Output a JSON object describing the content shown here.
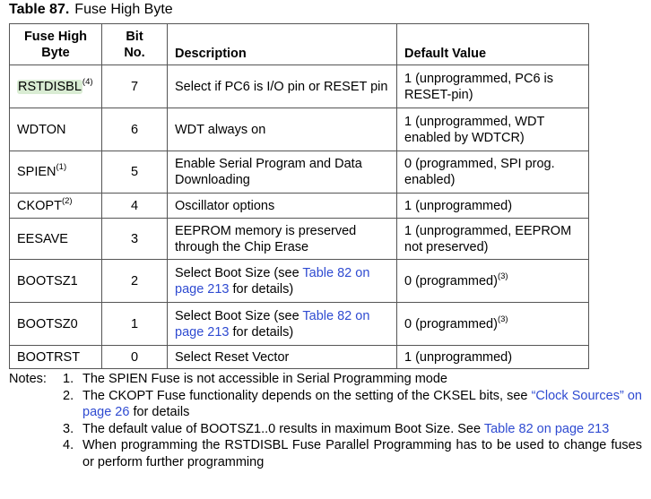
{
  "title": {
    "label": "Table 87.",
    "text": "Fuse High Byte"
  },
  "headers": {
    "name_line1": "Fuse High",
    "name_line2": "Byte",
    "bit_line1": "Bit",
    "bit_line2": "No.",
    "description": "Description",
    "default": "Default Value"
  },
  "rows": [
    {
      "name": "RSTDISBL",
      "sup": "(4)",
      "bit": "7",
      "desc_pre": "Select if PC6 is I/O pin or RESET pin",
      "desc_link": "",
      "desc_post": "",
      "default": "1 (unprogrammed, PC6 is RESET-pin)",
      "default_sup": ""
    },
    {
      "name": "WDTON",
      "sup": "",
      "bit": "6",
      "desc_pre": "WDT always on",
      "desc_link": "",
      "desc_post": "",
      "default": "1 (unprogrammed, WDT enabled by WDTCR)",
      "default_sup": ""
    },
    {
      "name": "SPIEN",
      "sup": "(1)",
      "bit": "5",
      "desc_pre": "Enable Serial Program and Data Downloading",
      "desc_link": "",
      "desc_post": "",
      "default": "0 (programmed, SPI prog. enabled)",
      "default_sup": ""
    },
    {
      "name": "CKOPT",
      "sup": "(2)",
      "bit": "4",
      "desc_pre": "Oscillator options",
      "desc_link": "",
      "desc_post": "",
      "default": "1 (unprogrammed)",
      "default_sup": ""
    },
    {
      "name": "EESAVE",
      "sup": "",
      "bit": "3",
      "desc_pre": "EEPROM memory is preserved through the Chip Erase",
      "desc_link": "",
      "desc_post": "",
      "default": "1 (unprogrammed, EEPROM not preserved)",
      "default_sup": ""
    },
    {
      "name": "BOOTSZ1",
      "sup": "",
      "bit": "2",
      "desc_pre": "Select Boot Size (see ",
      "desc_link": "Table 82 on page 213",
      "desc_post": " for details)",
      "default": "0 (programmed)",
      "default_sup": "(3)"
    },
    {
      "name": "BOOTSZ0",
      "sup": "",
      "bit": "1",
      "desc_pre": "Select Boot Size (see ",
      "desc_link": "Table 82 on page 213",
      "desc_post": " for details)",
      "default": "0 (programmed)",
      "default_sup": "(3)"
    },
    {
      "name": "BOOTRST",
      "sup": "",
      "bit": "0",
      "desc_pre": "Select Reset Vector",
      "desc_link": "",
      "desc_post": "",
      "default": "1 (unprogrammed)",
      "default_sup": ""
    }
  ],
  "notes": {
    "label": "Notes:",
    "items": [
      {
        "num": "1.",
        "pre": "The SPIEN Fuse is not accessible in Serial Programming mode",
        "link": "",
        "post": ""
      },
      {
        "num": "2.",
        "pre": "The CKOPT Fuse functionality depends on the setting of the CKSEL bits, see ",
        "link": "“Clock Sources” on page 26",
        "post": " for details"
      },
      {
        "num": "3.",
        "pre": "The default value of BOOTSZ1..0 results in maximum Boot Size. See ",
        "link": "Table 82 on page 213",
        "post": ""
      },
      {
        "num": "4.",
        "pre": "When programming the RSTDISBL Fuse Parallel Programming has to be used to change fuses or perform further programming",
        "link": "",
        "post": ""
      }
    ]
  },
  "colors": {
    "link": "#2f4bd1",
    "highlight": "#d9ecd3",
    "border": "#555555"
  }
}
